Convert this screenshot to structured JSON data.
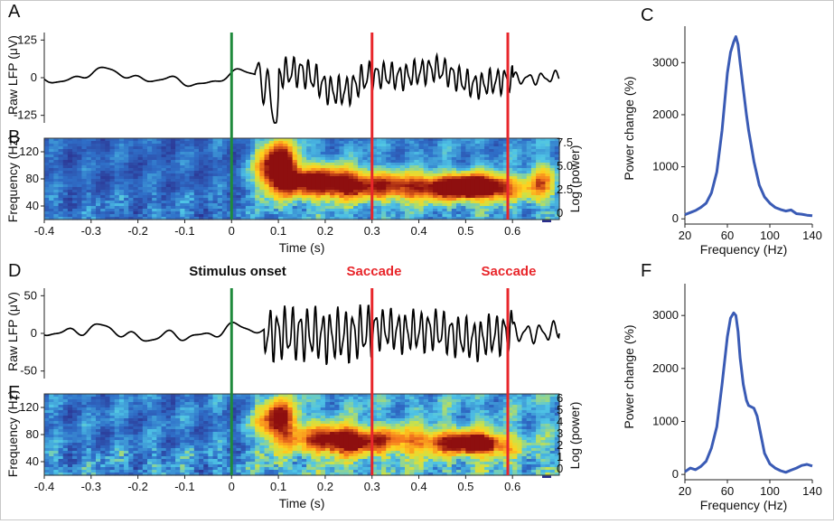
{
  "panel_labels": [
    "A",
    "B",
    "C",
    "D",
    "E",
    "F"
  ],
  "annotations": {
    "stimulus": "Stimulus onset",
    "saccade1": "Saccade",
    "saccade2": "Saccade"
  },
  "colors": {
    "stimulus_line": "#1f8a3c",
    "saccade_line": "#e8262b",
    "saccade_text": "#e8262b",
    "trace": "#000000",
    "spectrum": "#3a5bb5"
  },
  "chart_data": [
    {
      "type": "line",
      "panel": "A",
      "ylabel": "Raw LFP (μV)",
      "yticks": [
        "125",
        "0",
        "-125"
      ],
      "ylim": [
        -150,
        150
      ],
      "xlim": [
        -0.4,
        0.7
      ],
      "events": [
        0,
        0.3,
        0.59
      ],
      "series": [
        {
          "segments": [
            {
              "t0": -0.4,
              "t1": 0.05,
              "f": 14,
              "amp": 8,
              "drift": 35
            },
            {
              "t0": 0.05,
              "t1": 0.1,
              "f": 40,
              "amp": 60,
              "drift": 0,
              "dip": -120
            },
            {
              "t0": 0.1,
              "t1": 0.3,
              "f": 62,
              "amp": 40,
              "drift": 60
            },
            {
              "t0": 0.3,
              "t1": 0.6,
              "f": 62,
              "amp": 35,
              "drift": 40
            },
            {
              "t0": 0.6,
              "t1": 0.7,
              "f": 35,
              "amp": 15,
              "drift": 10
            }
          ]
        }
      ]
    },
    {
      "type": "heatmap",
      "panel": "B",
      "ylabel": "Frequency (Hz)",
      "xlabel": "Time (s)",
      "yticks": [
        "120",
        "80",
        "40"
      ],
      "xticks": [
        "-0.4",
        "-0.3",
        "-0.2",
        "-0.1",
        "0",
        "0.1",
        "0.2",
        "0.3",
        "0.4",
        "0.5",
        "0.6"
      ],
      "xlim": [
        -0.4,
        0.7
      ],
      "ylim": [
        20,
        140
      ],
      "colorbar": {
        "label": "Log (power)",
        "ticks": [
          "7.5",
          "5.0",
          "2.5",
          "0"
        ],
        "range": [
          0,
          7.5
        ]
      },
      "hotspots": [
        {
          "t": 0.1,
          "f": 100,
          "st": 0.03,
          "sf": 25,
          "v": 7.5
        },
        {
          "t": 0.2,
          "f": 75,
          "st": 0.07,
          "sf": 16,
          "v": 6.2
        },
        {
          "t": 0.42,
          "f": 68,
          "st": 0.12,
          "sf": 14,
          "v": 5.6
        },
        {
          "t": 0.53,
          "f": 68,
          "st": 0.05,
          "sf": 12,
          "v": 5.8
        },
        {
          "t": 0.66,
          "f": 75,
          "st": 0.02,
          "sf": 20,
          "v": 3.5
        }
      ]
    },
    {
      "type": "line",
      "panel": "C",
      "xlabel": "Frequency (Hz)",
      "ylabel": "Power change (%)",
      "xticks": [
        20,
        60,
        100,
        140
      ],
      "yticks": [
        0,
        1000,
        2000,
        3000
      ],
      "xlim": [
        20,
        140
      ],
      "ylim": [
        -100,
        3700
      ],
      "series": [
        {
          "x": [
            20,
            25,
            30,
            35,
            40,
            45,
            50,
            55,
            60,
            63,
            66,
            68,
            70,
            72,
            75,
            78,
            80,
            85,
            90,
            95,
            100,
            105,
            110,
            115,
            120,
            125,
            130,
            135,
            140
          ],
          "y": [
            80,
            120,
            160,
            220,
            300,
            500,
            900,
            1700,
            2800,
            3200,
            3400,
            3500,
            3350,
            3000,
            2500,
            2000,
            1700,
            1100,
            650,
            420,
            300,
            220,
            180,
            150,
            170,
            100,
            90,
            70,
            60
          ]
        }
      ]
    },
    {
      "type": "line",
      "panel": "D",
      "ylabel": "Raw LFP (μV)",
      "yticks": [
        "50",
        "0",
        "-50"
      ],
      "ylim": [
        -60,
        60
      ],
      "xlim": [
        -0.4,
        0.7
      ],
      "events": [
        0,
        0.3,
        0.59
      ],
      "series": [
        {
          "segments": [
            {
              "t0": -0.4,
              "t1": 0.07,
              "f": 14,
              "amp": 5,
              "drift": 12
            },
            {
              "t0": 0.07,
              "t1": 0.3,
              "f": 62,
              "amp": 28,
              "drift": 5
            },
            {
              "t0": 0.3,
              "t1": 0.6,
              "f": 62,
              "amp": 22,
              "drift": 10
            },
            {
              "t0": 0.6,
              "t1": 0.7,
              "f": 35,
              "amp": 10,
              "drift": 6
            }
          ]
        }
      ]
    },
    {
      "type": "heatmap",
      "panel": "E",
      "ylabel": "Frequency (Hz)",
      "xlabel": "Time (s)",
      "yticks": [
        "120",
        "80",
        "40"
      ],
      "xticks": [
        "-0.4",
        "-0.3",
        "-0.2",
        "-0.1",
        "0",
        "0.1",
        "0.2",
        "0.3",
        "0.4",
        "0.5",
        "0.6"
      ],
      "xlim": [
        -0.4,
        0.7
      ],
      "ylim": [
        20,
        140
      ],
      "colorbar": {
        "label": "Log (power)",
        "ticks": [
          "6",
          "5",
          "4",
          "3",
          "2",
          "1",
          "0"
        ],
        "range": [
          0,
          6
        ]
      },
      "hotspots": [
        {
          "t": 0.1,
          "f": 100,
          "st": 0.03,
          "sf": 22,
          "v": 4.6
        },
        {
          "t": 0.23,
          "f": 72,
          "st": 0.06,
          "sf": 14,
          "v": 5.2
        },
        {
          "t": 0.43,
          "f": 70,
          "st": 0.1,
          "sf": 14,
          "v": 3.2
        },
        {
          "t": 0.53,
          "f": 65,
          "st": 0.04,
          "sf": 10,
          "v": 4.4
        }
      ]
    },
    {
      "type": "line",
      "panel": "F",
      "xlabel": "Frequency (Hz)",
      "ylabel": "Power change (%)",
      "xticks": [
        20,
        60,
        100,
        140
      ],
      "yticks": [
        0,
        1000,
        2000,
        3000
      ],
      "xlim": [
        20,
        140
      ],
      "ylim": [
        -100,
        3600
      ],
      "series": [
        {
          "x": [
            20,
            25,
            30,
            35,
            40,
            45,
            50,
            55,
            60,
            63,
            66,
            68,
            70,
            72,
            75,
            78,
            80,
            85,
            88,
            92,
            95,
            100,
            105,
            110,
            115,
            120,
            125,
            130,
            135,
            140
          ],
          "y": [
            50,
            120,
            90,
            150,
            250,
            500,
            900,
            1700,
            2600,
            2950,
            3050,
            3000,
            2700,
            2200,
            1700,
            1400,
            1300,
            1250,
            1100,
            700,
            400,
            200,
            120,
            70,
            40,
            80,
            120,
            170,
            190,
            160
          ]
        }
      ]
    }
  ]
}
